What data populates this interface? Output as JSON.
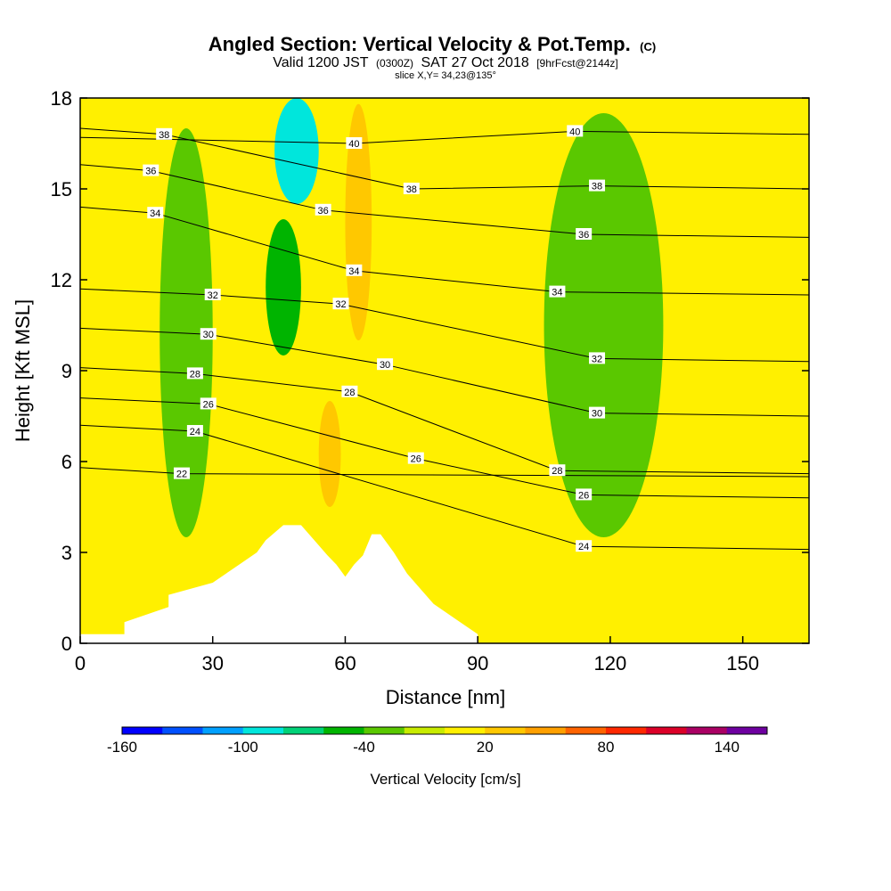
{
  "header": {
    "title": "Angled Section: Vertical Velocity & Pot.Temp.",
    "title_unit": "(C)",
    "valid_prefix": "Valid 1200 JST",
    "valid_utc": "(0300Z)",
    "valid_date": "SAT 27 Oct 2018",
    "forecast": "[9hrFcst@2144z]",
    "slice": "slice X,Y= 34,23@135°"
  },
  "chart_data": {
    "type": "heatmap",
    "xlabel": "Distance [nm]",
    "ylabel": "Height [Kft MSL]",
    "xlim": [
      0,
      165
    ],
    "ylim": [
      0,
      18
    ],
    "x_ticks": [
      "0",
      "30",
      "60",
      "90",
      "120",
      "150"
    ],
    "x_tick_values": [
      0,
      30,
      60,
      90,
      120,
      150
    ],
    "y_ticks": [
      "0",
      "3",
      "6",
      "9",
      "12",
      "15",
      "18"
    ],
    "y_tick_values": [
      0,
      3,
      6,
      9,
      12,
      15,
      18
    ],
    "colorbar": {
      "label": "Vertical Velocity [cm/s]",
      "range": [
        -160,
        160
      ],
      "step": 20,
      "tick_labels": [
        "-160",
        "-100",
        "-40",
        "20",
        "80",
        "140"
      ],
      "tick_values": [
        -160,
        -100,
        -40,
        20,
        80,
        140
      ],
      "colors": [
        "#0000ff",
        "#0050ff",
        "#00a0ff",
        "#00e6dc",
        "#00d278",
        "#00b400",
        "#5ac800",
        "#c8eb00",
        "#fff000",
        "#ffc800",
        "#ffa000",
        "#ff6400",
        "#ff2800",
        "#dc0028",
        "#aa0064",
        "#6e00a0"
      ]
    },
    "background_level": "0 to 20 cm/s",
    "regions": [
      {
        "name": "weak updraft",
        "level": "20 to 40 cm/s",
        "color": "#ffc800",
        "x": [
          60,
          66
        ],
        "y": [
          10,
          17.8
        ]
      },
      {
        "name": "weak updraft",
        "level": "20 to 40 cm/s",
        "color": "#ffc800",
        "x": [
          54,
          59
        ],
        "y": [
          4.5,
          8
        ]
      },
      {
        "name": "downdraft",
        "level": "-40 to -20 cm/s",
        "color": "#5ac800",
        "x": [
          18,
          30
        ],
        "y": [
          3.5,
          17
        ]
      },
      {
        "name": "downdraft",
        "level": "-60 to -40 cm/s",
        "color": "#00b400",
        "x": [
          42,
          50
        ],
        "y": [
          9.5,
          14
        ]
      },
      {
        "name": "downdraft",
        "level": "-100 to -80 cm/s",
        "color": "#00e6dc",
        "x": [
          44,
          54
        ],
        "y": [
          14.5,
          18
        ]
      },
      {
        "name": "downdraft",
        "level": "-40 to -20 cm/s",
        "color": "#5ac800",
        "x": [
          105,
          132
        ],
        "y": [
          3.5,
          17.5
        ]
      }
    ],
    "isentrope_labels": [
      {
        "text": "38",
        "x": 19,
        "y": 16.8
      },
      {
        "text": "36",
        "x": 16,
        "y": 15.6
      },
      {
        "text": "34",
        "x": 17,
        "y": 14.2
      },
      {
        "text": "32",
        "x": 30,
        "y": 11.5
      },
      {
        "text": "30",
        "x": 29,
        "y": 10.2
      },
      {
        "text": "28",
        "x": 26,
        "y": 8.9
      },
      {
        "text": "26",
        "x": 29,
        "y": 7.9
      },
      {
        "text": "24",
        "x": 26,
        "y": 7.0
      },
      {
        "text": "22",
        "x": 23,
        "y": 5.6
      },
      {
        "text": "40",
        "x": 62,
        "y": 16.5
      },
      {
        "text": "38",
        "x": 75,
        "y": 15.0
      },
      {
        "text": "36",
        "x": 55,
        "y": 14.3
      },
      {
        "text": "34",
        "x": 62,
        "y": 12.3
      },
      {
        "text": "32",
        "x": 59,
        "y": 11.2
      },
      {
        "text": "30",
        "x": 69,
        "y": 9.2
      },
      {
        "text": "28",
        "x": 61,
        "y": 8.3
      },
      {
        "text": "26",
        "x": 76,
        "y": 6.1
      },
      {
        "text": "40",
        "x": 112,
        "y": 16.9
      },
      {
        "text": "38",
        "x": 117,
        "y": 15.1
      },
      {
        "text": "36",
        "x": 114,
        "y": 13.5
      },
      {
        "text": "34",
        "x": 108,
        "y": 11.6
      },
      {
        "text": "32",
        "x": 117,
        "y": 9.4
      },
      {
        "text": "30",
        "x": 117,
        "y": 7.6
      },
      {
        "text": "28",
        "x": 108,
        "y": 5.7
      },
      {
        "text": "26",
        "x": 114,
        "y": 4.9
      },
      {
        "text": "24",
        "x": 114,
        "y": 3.2
      }
    ],
    "terrain": {
      "description": "stepped mountain profile (no data below ground)",
      "x": [
        0,
        10,
        10,
        20,
        20,
        30,
        36,
        40,
        42,
        46,
        50,
        53,
        56,
        58,
        60,
        62,
        64,
        66,
        68,
        71,
        74,
        77,
        80,
        84,
        88,
        90,
        90
      ],
      "y": [
        0.3,
        0.3,
        0.7,
        1.2,
        1.6,
        2.0,
        2.6,
        3.0,
        3.4,
        3.9,
        3.9,
        3.4,
        2.9,
        2.6,
        2.2,
        2.6,
        2.9,
        3.6,
        3.6,
        3.0,
        2.3,
        1.8,
        1.3,
        0.9,
        0.5,
        0.3,
        0.3
      ]
    }
  }
}
